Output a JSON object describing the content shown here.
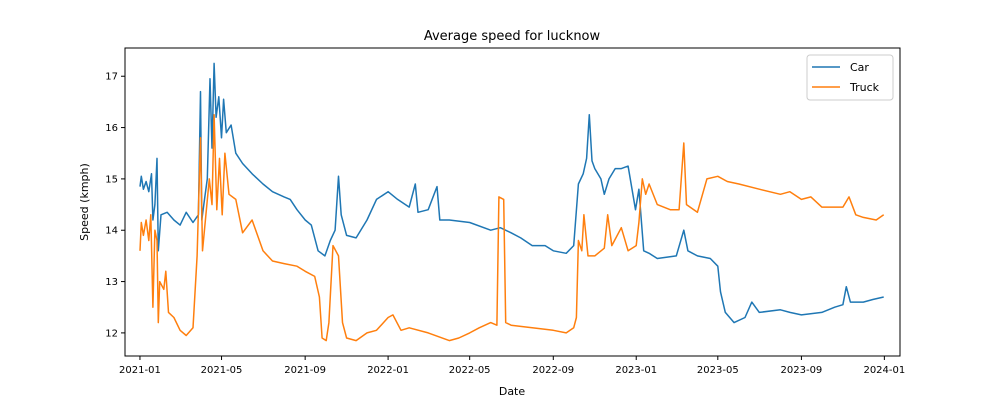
{
  "chart_data": {
    "type": "line",
    "title": "Average speed for lucknow",
    "xlabel": "Date",
    "ylabel": "Speed (kmph)",
    "xlim": [
      "2020-12-10",
      "2024-01-24"
    ],
    "ylim": [
      11.55,
      17.55
    ],
    "x_ticks": [
      "2021-01",
      "2021-05",
      "2021-09",
      "2022-01",
      "2022-05",
      "2022-09",
      "2023-01",
      "2023-05",
      "2023-09",
      "2024-01"
    ],
    "y_ticks": [
      12,
      13,
      14,
      15,
      16,
      17
    ],
    "grid": false,
    "legend_position": "top-right",
    "series": [
      {
        "name": "Car",
        "color": "#1f77b4",
        "points": [
          [
            "2021-01-01",
            14.85
          ],
          [
            "2021-01-03",
            15.05
          ],
          [
            "2021-01-06",
            14.8
          ],
          [
            "2021-01-10",
            14.95
          ],
          [
            "2021-01-14",
            14.75
          ],
          [
            "2021-01-18",
            15.1
          ],
          [
            "2021-01-20",
            14.2
          ],
          [
            "2021-01-23",
            14.5
          ],
          [
            "2021-01-26",
            15.4
          ],
          [
            "2021-01-28",
            13.6
          ],
          [
            "2021-02-01",
            14.3
          ],
          [
            "2021-02-10",
            14.35
          ],
          [
            "2021-02-20",
            14.2
          ],
          [
            "2021-03-01",
            14.1
          ],
          [
            "2021-03-10",
            14.35
          ],
          [
            "2021-03-20",
            14.15
          ],
          [
            "2021-03-28",
            14.3
          ],
          [
            "2021-03-31",
            16.7
          ],
          [
            "2021-04-02",
            14.2
          ],
          [
            "2021-04-06",
            14.6
          ],
          [
            "2021-04-10",
            15.0
          ],
          [
            "2021-04-14",
            16.95
          ],
          [
            "2021-04-17",
            15.6
          ],
          [
            "2021-04-20",
            17.25
          ],
          [
            "2021-04-23",
            16.2
          ],
          [
            "2021-04-27",
            16.6
          ],
          [
            "2021-05-01",
            15.8
          ],
          [
            "2021-05-04",
            16.55
          ],
          [
            "2021-05-08",
            15.9
          ],
          [
            "2021-05-15",
            16.05
          ],
          [
            "2021-05-22",
            15.5
          ],
          [
            "2021-06-01",
            15.3
          ],
          [
            "2021-06-15",
            15.1
          ],
          [
            "2021-07-01",
            14.9
          ],
          [
            "2021-07-15",
            14.75
          ],
          [
            "2021-08-01",
            14.65
          ],
          [
            "2021-08-10",
            14.6
          ],
          [
            "2021-08-20",
            14.4
          ],
          [
            "2021-09-01",
            14.2
          ],
          [
            "2021-09-10",
            14.1
          ],
          [
            "2021-09-20",
            13.6
          ],
          [
            "2021-09-30",
            13.5
          ],
          [
            "2021-10-08",
            13.8
          ],
          [
            "2021-10-15",
            14.0
          ],
          [
            "2021-10-20",
            15.05
          ],
          [
            "2021-10-24",
            14.3
          ],
          [
            "2021-11-01",
            13.9
          ],
          [
            "2021-11-15",
            13.85
          ],
          [
            "2021-12-01",
            14.2
          ],
          [
            "2021-12-15",
            14.6
          ],
          [
            "2022-01-01",
            14.75
          ],
          [
            "2022-01-15",
            14.6
          ],
          [
            "2022-02-01",
            14.45
          ],
          [
            "2022-02-10",
            14.9
          ],
          [
            "2022-02-14",
            14.35
          ],
          [
            "2022-03-01",
            14.4
          ],
          [
            "2022-03-14",
            14.85
          ],
          [
            "2022-03-18",
            14.2
          ],
          [
            "2022-04-01",
            14.2
          ],
          [
            "2022-05-01",
            14.15
          ],
          [
            "2022-06-01",
            14.0
          ],
          [
            "2022-06-15",
            14.05
          ],
          [
            "2022-07-01",
            13.95
          ],
          [
            "2022-07-15",
            13.85
          ],
          [
            "2022-08-01",
            13.7
          ],
          [
            "2022-08-20",
            13.7
          ],
          [
            "2022-09-01",
            13.6
          ],
          [
            "2022-09-20",
            13.55
          ],
          [
            "2022-10-01",
            13.7
          ],
          [
            "2022-10-08",
            14.9
          ],
          [
            "2022-10-15",
            15.1
          ],
          [
            "2022-10-20",
            15.4
          ],
          [
            "2022-10-24",
            16.25
          ],
          [
            "2022-10-28",
            15.35
          ],
          [
            "2022-11-01",
            15.2
          ],
          [
            "2022-11-10",
            15.0
          ],
          [
            "2022-11-15",
            14.7
          ],
          [
            "2022-11-22",
            15.0
          ],
          [
            "2022-12-01",
            15.2
          ],
          [
            "2022-12-10",
            15.2
          ],
          [
            "2022-12-20",
            15.25
          ],
          [
            "2022-12-31",
            14.4
          ],
          [
            "2023-01-05",
            14.8
          ],
          [
            "2023-01-12",
            13.6
          ],
          [
            "2023-01-20",
            13.55
          ],
          [
            "2023-02-01",
            13.45
          ],
          [
            "2023-03-01",
            13.5
          ],
          [
            "2023-03-12",
            14.0
          ],
          [
            "2023-03-18",
            13.6
          ],
          [
            "2023-04-01",
            13.5
          ],
          [
            "2023-04-20",
            13.45
          ],
          [
            "2023-05-01",
            13.3
          ],
          [
            "2023-05-05",
            12.8
          ],
          [
            "2023-05-12",
            12.4
          ],
          [
            "2023-05-25",
            12.2
          ],
          [
            "2023-06-10",
            12.3
          ],
          [
            "2023-06-20",
            12.6
          ],
          [
            "2023-07-01",
            12.4
          ],
          [
            "2023-08-01",
            12.45
          ],
          [
            "2023-08-15",
            12.4
          ],
          [
            "2023-09-01",
            12.35
          ],
          [
            "2023-10-01",
            12.4
          ],
          [
            "2023-10-20",
            12.5
          ],
          [
            "2023-11-01",
            12.55
          ],
          [
            "2023-11-06",
            12.9
          ],
          [
            "2023-11-12",
            12.6
          ],
          [
            "2023-12-01",
            12.6
          ],
          [
            "2023-12-15",
            12.65
          ],
          [
            "2023-12-31",
            12.7
          ]
        ]
      },
      {
        "name": "Truck",
        "color": "#ff7f0e",
        "points": [
          [
            "2021-01-01",
            13.6
          ],
          [
            "2021-01-03",
            14.15
          ],
          [
            "2021-01-06",
            13.9
          ],
          [
            "2021-01-10",
            14.2
          ],
          [
            "2021-01-14",
            13.8
          ],
          [
            "2021-01-17",
            14.3
          ],
          [
            "2021-01-20",
            12.5
          ],
          [
            "2021-01-23",
            14.0
          ],
          [
            "2021-01-26",
            13.8
          ],
          [
            "2021-01-28",
            12.2
          ],
          [
            "2021-01-30",
            13.0
          ],
          [
            "2021-02-05",
            12.85
          ],
          [
            "2021-02-08",
            13.2
          ],
          [
            "2021-02-12",
            12.4
          ],
          [
            "2021-02-20",
            12.3
          ],
          [
            "2021-03-01",
            12.05
          ],
          [
            "2021-03-10",
            11.95
          ],
          [
            "2021-03-20",
            12.1
          ],
          [
            "2021-03-26",
            13.5
          ],
          [
            "2021-03-31",
            15.8
          ],
          [
            "2021-04-03",
            13.6
          ],
          [
            "2021-04-08",
            14.3
          ],
          [
            "2021-04-13",
            15.0
          ],
          [
            "2021-04-17",
            14.5
          ],
          [
            "2021-04-20",
            16.25
          ],
          [
            "2021-04-24",
            14.4
          ],
          [
            "2021-04-28",
            15.4
          ],
          [
            "2021-05-02",
            14.3
          ],
          [
            "2021-05-06",
            15.5
          ],
          [
            "2021-05-12",
            14.7
          ],
          [
            "2021-05-22",
            14.6
          ],
          [
            "2021-06-01",
            13.95
          ],
          [
            "2021-06-15",
            14.2
          ],
          [
            "2021-07-01",
            13.6
          ],
          [
            "2021-07-15",
            13.4
          ],
          [
            "2021-08-01",
            13.35
          ],
          [
            "2021-08-20",
            13.3
          ],
          [
            "2021-09-01",
            13.2
          ],
          [
            "2021-09-15",
            13.1
          ],
          [
            "2021-09-22",
            12.7
          ],
          [
            "2021-09-26",
            11.9
          ],
          [
            "2021-10-02",
            11.85
          ],
          [
            "2021-10-06",
            12.2
          ],
          [
            "2021-10-12",
            13.7
          ],
          [
            "2021-10-20",
            13.5
          ],
          [
            "2021-10-26",
            12.2
          ],
          [
            "2021-11-01",
            11.9
          ],
          [
            "2021-11-15",
            11.85
          ],
          [
            "2021-12-01",
            12.0
          ],
          [
            "2021-12-15",
            12.05
          ],
          [
            "2022-01-01",
            12.3
          ],
          [
            "2022-01-08",
            12.35
          ],
          [
            "2022-01-20",
            12.05
          ],
          [
            "2022-02-01",
            12.1
          ],
          [
            "2022-03-01",
            12.0
          ],
          [
            "2022-04-01",
            11.85
          ],
          [
            "2022-04-15",
            11.9
          ],
          [
            "2022-05-01",
            12.0
          ],
          [
            "2022-05-15",
            12.1
          ],
          [
            "2022-06-01",
            12.2
          ],
          [
            "2022-06-10",
            12.15
          ],
          [
            "2022-06-13",
            14.65
          ],
          [
            "2022-06-20",
            14.6
          ],
          [
            "2022-06-23",
            12.2
          ],
          [
            "2022-07-01",
            12.15
          ],
          [
            "2022-08-01",
            12.1
          ],
          [
            "2022-09-01",
            12.05
          ],
          [
            "2022-09-20",
            12.0
          ],
          [
            "2022-10-01",
            12.1
          ],
          [
            "2022-10-05",
            12.3
          ],
          [
            "2022-10-08",
            13.8
          ],
          [
            "2022-10-13",
            13.6
          ],
          [
            "2022-10-16",
            14.3
          ],
          [
            "2022-10-22",
            13.5
          ],
          [
            "2022-11-01",
            13.5
          ],
          [
            "2022-11-15",
            13.65
          ],
          [
            "2022-11-20",
            14.3
          ],
          [
            "2022-11-26",
            13.7
          ],
          [
            "2022-12-10",
            14.05
          ],
          [
            "2022-12-20",
            13.6
          ],
          [
            "2023-01-01",
            13.7
          ],
          [
            "2023-01-05",
            14.15
          ],
          [
            "2023-01-10",
            15.0
          ],
          [
            "2023-01-15",
            14.7
          ],
          [
            "2023-01-20",
            14.9
          ],
          [
            "2023-02-01",
            14.5
          ],
          [
            "2023-02-20",
            14.4
          ],
          [
            "2023-03-05",
            14.4
          ],
          [
            "2023-03-12",
            15.7
          ],
          [
            "2023-03-16",
            14.5
          ],
          [
            "2023-04-01",
            14.35
          ],
          [
            "2023-04-15",
            15.0
          ],
          [
            "2023-05-01",
            15.05
          ],
          [
            "2023-05-15",
            14.95
          ],
          [
            "2023-06-01",
            14.9
          ],
          [
            "2023-07-01",
            14.8
          ],
          [
            "2023-08-01",
            14.7
          ],
          [
            "2023-08-15",
            14.75
          ],
          [
            "2023-09-01",
            14.6
          ],
          [
            "2023-09-15",
            14.65
          ],
          [
            "2023-10-01",
            14.45
          ],
          [
            "2023-10-15",
            14.45
          ],
          [
            "2023-11-01",
            14.45
          ],
          [
            "2023-11-10",
            14.65
          ],
          [
            "2023-11-20",
            14.3
          ],
          [
            "2023-12-01",
            14.25
          ],
          [
            "2023-12-20",
            14.2
          ],
          [
            "2023-12-31",
            14.3
          ]
        ]
      }
    ]
  }
}
